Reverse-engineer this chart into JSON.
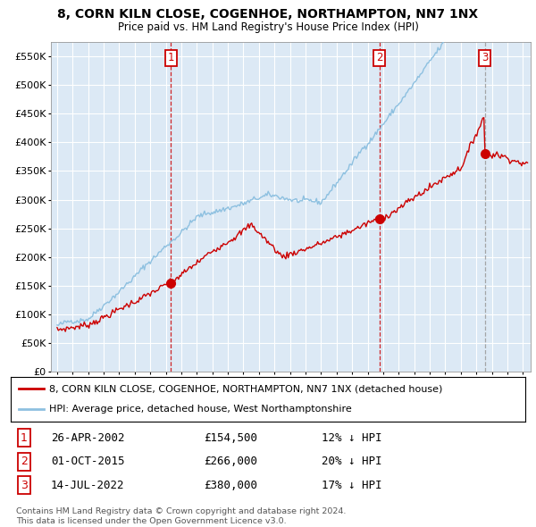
{
  "title": "8, CORN KILN CLOSE, COGENHOE, NORTHAMPTON, NN7 1NX",
  "subtitle": "Price paid vs. HM Land Registry's House Price Index (HPI)",
  "background_color": "#dce9f5",
  "plot_bg_color": "#dce9f5",
  "grid_color": "#ffffff",
  "hpi_color": "#8dc0e0",
  "price_color": "#cc0000",
  "ylim": [
    0,
    575000
  ],
  "yticks": [
    0,
    50000,
    100000,
    150000,
    200000,
    250000,
    300000,
    350000,
    400000,
    450000,
    500000,
    550000
  ],
  "xlim_start": 1994.6,
  "xlim_end": 2025.5,
  "sale1_x": 2002.32,
  "sale1_y": 154500,
  "sale2_x": 2015.75,
  "sale2_y": 266000,
  "sale3_x": 2022.54,
  "sale3_y": 380000,
  "legend_line1": "8, CORN KILN CLOSE, COGENHOE, NORTHAMPTON, NN7 1NX (detached house)",
  "legend_line2": "HPI: Average price, detached house, West Northamptonshire",
  "table_rows": [
    [
      "1",
      "26-APR-2002",
      "£154,500",
      "12% ↓ HPI"
    ],
    [
      "2",
      "01-OCT-2015",
      "£266,000",
      "20% ↓ HPI"
    ],
    [
      "3",
      "14-JUL-2022",
      "£380,000",
      "17% ↓ HPI"
    ]
  ],
  "footnote1": "Contains HM Land Registry data © Crown copyright and database right 2024.",
  "footnote2": "This data is licensed under the Open Government Licence v3.0."
}
